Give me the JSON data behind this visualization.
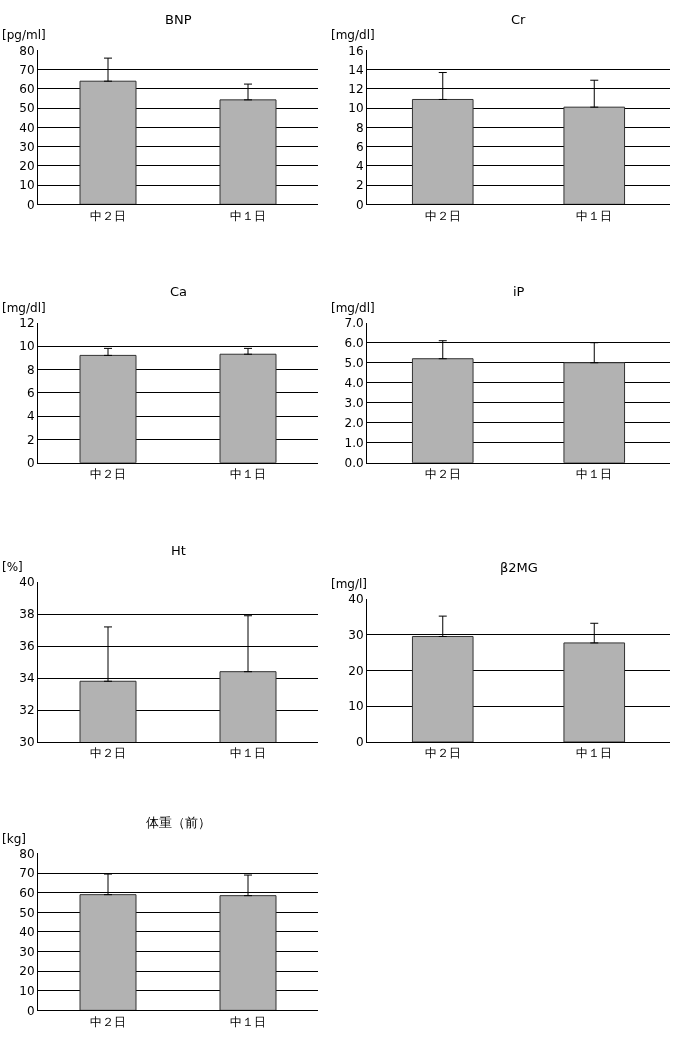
{
  "chart_data": [
    {
      "type": "bar",
      "title": "BNP",
      "ylabel": "[pg/ml]",
      "categories": [
        "中２日",
        "中１日"
      ],
      "values": [
        64,
        54.3
      ],
      "errors": [
        [
          64,
          76
        ],
        [
          54.3,
          62.5
        ]
      ],
      "color": "#b2b2b2",
      "ylim": [
        0,
        80
      ],
      "yticks": [
        0,
        10,
        20,
        30,
        40,
        50,
        60,
        70,
        80
      ],
      "grid": "y"
    },
    {
      "type": "bar",
      "title": "Cr",
      "ylabel": "[mg/dl]",
      "categories": [
        "中２日",
        "中１日"
      ],
      "values": [
        10.9,
        10.1
      ],
      "errors": [
        [
          10.9,
          13.7
        ],
        [
          10.1,
          12.9
        ]
      ],
      "color": "#b2b2b2",
      "ylim": [
        0,
        16
      ],
      "yticks": [
        0,
        2,
        4,
        6,
        8,
        10,
        12,
        14,
        16
      ],
      "grid": "y"
    },
    {
      "type": "bar",
      "title": "Ca",
      "ylabel": "[mg/dl]",
      "categories": [
        "中２日",
        "中１日"
      ],
      "values": [
        9.2,
        9.3
      ],
      "errors": [
        [
          9.2,
          9.8
        ],
        [
          9.3,
          9.8
        ]
      ],
      "color": "#b2b2b2",
      "ylim": [
        0,
        12
      ],
      "yticks": [
        0,
        2,
        4,
        6,
        8,
        10,
        12
      ],
      "grid": "y"
    },
    {
      "type": "bar",
      "title": "iP",
      "ylabel": "[mg/dl]",
      "categories": [
        "中２日",
        "中１日"
      ],
      "values": [
        5.2,
        5.0
      ],
      "errors": [
        [
          5.2,
          6.1
        ],
        [
          5.0,
          6.0
        ]
      ],
      "color": "#b2b2b2",
      "ylim": [
        0,
        7
      ],
      "yticks": [
        {
          "value": 0,
          "label": "0.0"
        },
        {
          "value": 1,
          "label": "1.0"
        },
        {
          "value": 2,
          "label": "2.0"
        },
        {
          "value": 3,
          "label": "3.0"
        },
        {
          "value": 4,
          "label": "4.0"
        },
        {
          "value": 5,
          "label": "5.0"
        },
        {
          "value": 6,
          "label": "6.0"
        },
        {
          "value": 7,
          "label": "7.0"
        }
      ],
      "grid": "y"
    },
    {
      "type": "bar",
      "title": "Ht",
      "ylabel": "[%]",
      "categories": [
        "中２日",
        "中１日"
      ],
      "values": [
        33.8,
        34.4
      ],
      "errors": [
        [
          33.8,
          37.2
        ],
        [
          34.4,
          37.9
        ]
      ],
      "color": "#b2b2b2",
      "ylim": [
        30,
        40
      ],
      "yticks": [
        30,
        32,
        34,
        36,
        38,
        40
      ],
      "grid": "y"
    },
    {
      "type": "bar",
      "title": "β2MG",
      "ylabel": "[mg/l]",
      "categories": [
        "中２日",
        "中１日"
      ],
      "values": [
        29.5,
        27.7
      ],
      "errors": [
        [
          29.5,
          35.2
        ],
        [
          27.7,
          33.2
        ]
      ],
      "color": "#b2b2b2",
      "ylim": [
        0,
        40
      ],
      "yticks": [
        0,
        10,
        20,
        30,
        40
      ],
      "grid": "y"
    },
    {
      "type": "bar",
      "title": "体重（前）",
      "ylabel": "[kg]",
      "categories": [
        "中２日",
        "中１日"
      ],
      "values": [
        59,
        58.5
      ],
      "errors": [
        [
          59,
          69.5
        ],
        [
          58.5,
          69
        ]
      ],
      "color": "#b2b2b2",
      "ylim": [
        0,
        80
      ],
      "yticks": [
        0,
        10,
        20,
        30,
        40,
        50,
        60,
        70,
        80
      ],
      "grid": "y"
    }
  ]
}
